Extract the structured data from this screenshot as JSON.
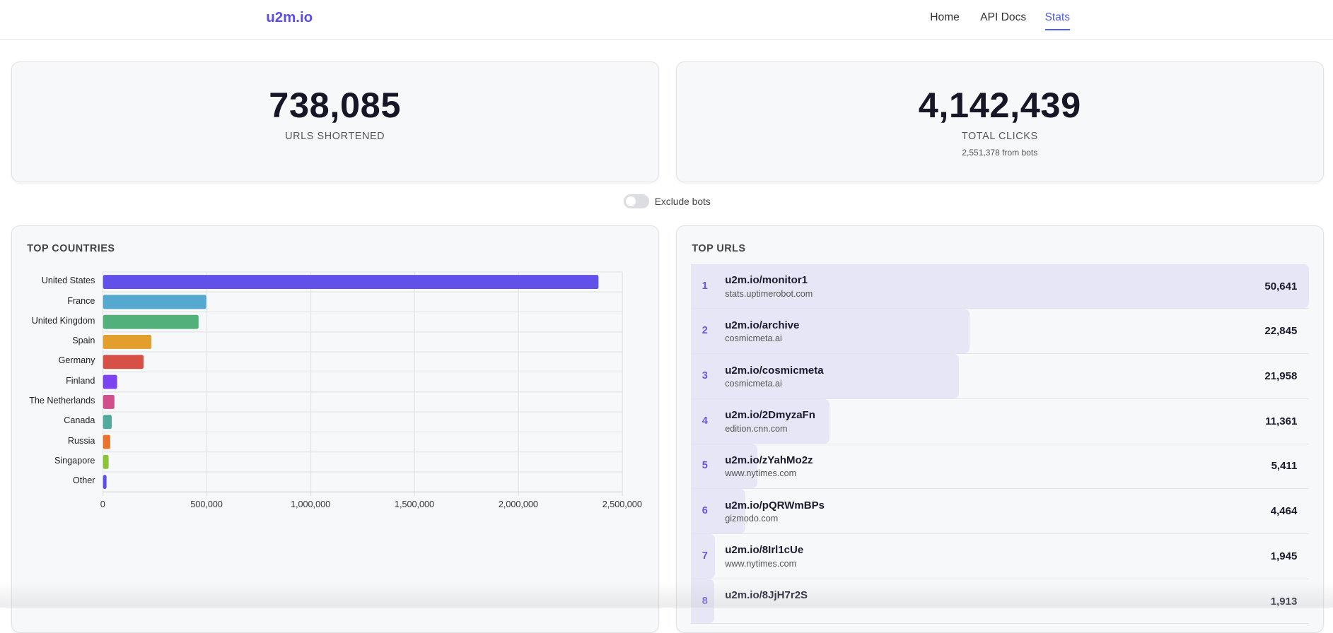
{
  "header": {
    "logo": "u2m.io",
    "nav": [
      {
        "label": "Home",
        "active": false
      },
      {
        "label": "API Docs",
        "active": false
      },
      {
        "label": "Stats",
        "active": true
      }
    ]
  },
  "stats": {
    "urls": {
      "value": "738,085",
      "label": "URLS SHORTENED"
    },
    "clicks": {
      "value": "4,142,439",
      "label": "TOTAL CLICKS",
      "sub": "2,551,378 from bots"
    }
  },
  "toggle": {
    "label": "Exclude bots",
    "on": false
  },
  "countries": {
    "title": "TOP COUNTRIES",
    "chart_data": {
      "type": "bar",
      "orientation": "horizontal",
      "categories": [
        "United States",
        "France",
        "United Kingdom",
        "Spain",
        "Germany",
        "Finland",
        "The Netherlands",
        "Canada",
        "Russia",
        "Singapore",
        "Other"
      ],
      "values": [
        2385000,
        497000,
        460000,
        233000,
        195000,
        68000,
        55000,
        42000,
        35000,
        27000,
        17000
      ],
      "colors": [
        "#6250ea",
        "#55a8cf",
        "#52b07b",
        "#e29f2c",
        "#d65046",
        "#7c44ef",
        "#d24e8d",
        "#4fac9c",
        "#e9722e",
        "#8ac43a",
        "#5b4fe8"
      ],
      "xlim": [
        0,
        2500000
      ],
      "xticks": [
        "0",
        "500,000",
        "1,000,000",
        "1,500,000",
        "2,000,000",
        "2,500,000"
      ],
      "grid": true
    }
  },
  "urls": {
    "title": "TOP URLS",
    "items": [
      {
        "rank": "1",
        "short": "u2m.io/monitor1",
        "dest": "stats.uptimerobot.com",
        "count": "50,641",
        "value": 50641
      },
      {
        "rank": "2",
        "short": "u2m.io/archive",
        "dest": "cosmicmeta.ai",
        "count": "22,845",
        "value": 22845
      },
      {
        "rank": "3",
        "short": "u2m.io/cosmicmeta",
        "dest": "cosmicmeta.ai",
        "count": "21,958",
        "value": 21958
      },
      {
        "rank": "4",
        "short": "u2m.io/2DmyzaFn",
        "dest": "edition.cnn.com",
        "count": "11,361",
        "value": 11361
      },
      {
        "rank": "5",
        "short": "u2m.io/zYahMo2z",
        "dest": "www.nytimes.com",
        "count": "5,411",
        "value": 5411
      },
      {
        "rank": "6",
        "short": "u2m.io/pQRWmBPs",
        "dest": "gizmodo.com",
        "count": "4,464",
        "value": 4464
      },
      {
        "rank": "7",
        "short": "u2m.io/8Irl1cUe",
        "dest": "www.nytimes.com",
        "count": "1,945",
        "value": 1945
      },
      {
        "rank": "8",
        "short": "u2m.io/8JjH7r2S",
        "dest": "",
        "count": "1,913",
        "value": 1913
      }
    ]
  }
}
